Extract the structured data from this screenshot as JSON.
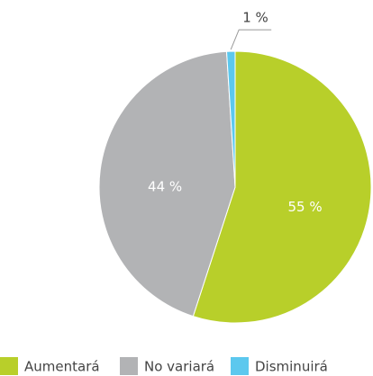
{
  "chart_data": {
    "type": "pie",
    "categories": [
      "Aumentará",
      "No variará",
      "Disminuirá"
    ],
    "values": [
      55,
      44,
      1
    ],
    "value_labels": [
      "55 %",
      "44 %",
      "1 %"
    ],
    "colors": [
      "#b8cf2a",
      "#b2b3b5",
      "#5cc8ee"
    ],
    "legend": "bottom"
  }
}
